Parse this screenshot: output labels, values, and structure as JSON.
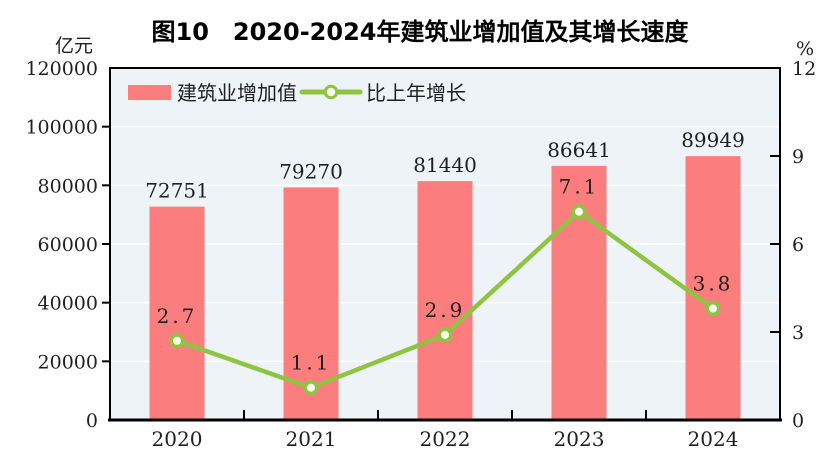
{
  "colors": {
    "bar": "#FC7D7D",
    "line": "#8FC442",
    "marker_fill": "#FDFEF2",
    "plot_bg": "#EDF3F7",
    "grid": "#FFFFFF",
    "axis": "#000000",
    "text": "#1F1F1F"
  },
  "chart_data": {
    "type": "combo-bar-line",
    "title": "图10　2020-2024年建筑业增加值及其增长速度",
    "categories": [
      "2020",
      "2021",
      "2022",
      "2023",
      "2024"
    ],
    "series": [
      {
        "name": "建筑业增加值",
        "type": "bar",
        "yaxis": "left",
        "values": [
          72751,
          79270,
          81440,
          86641,
          89949
        ]
      },
      {
        "name": "比上年增长",
        "type": "line",
        "yaxis": "right",
        "values": [
          2.7,
          1.1,
          2.9,
          7.1,
          3.8
        ]
      }
    ],
    "left_axis": {
      "unit": "亿元",
      "min": 0,
      "max": 120000,
      "step": 20000,
      "tick_labels": [
        "0",
        "20000",
        "40000",
        "60000",
        "80000",
        "100000",
        "120000"
      ]
    },
    "right_axis": {
      "unit": "%",
      "min": 0,
      "max": 12,
      "step": 3,
      "tick_labels": [
        "0",
        "3",
        "6",
        "9",
        "12"
      ]
    },
    "grid": true,
    "legend_position": "top-left-inside"
  }
}
